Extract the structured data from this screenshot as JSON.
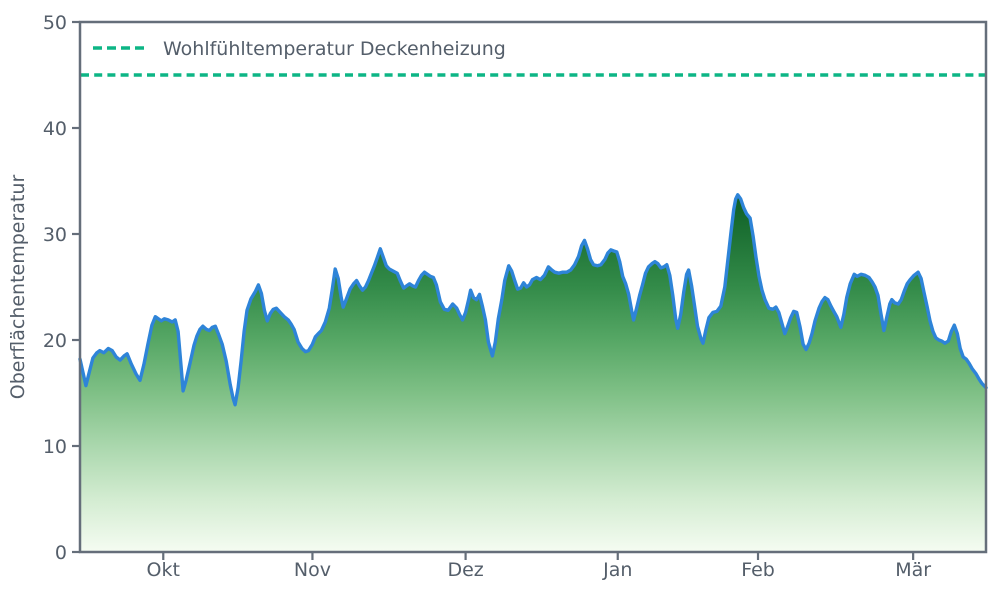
{
  "colors": {
    "background": "#ffffff",
    "frame": "#656e7a",
    "text": "#545e6a",
    "series_line": "#2e84d8",
    "reference_line": "#0db585"
  },
  "legend": {
    "label": "Wohlfühltemperatur Deckenheizung",
    "position": "upper left"
  },
  "chart_data": {
    "type": "area",
    "title": "",
    "xlabel": "",
    "ylabel": "Oberflächentemperatur",
    "ylim": [
      0,
      50
    ],
    "grid": false,
    "legend_position": "upper left",
    "y_ticks": [
      0,
      10,
      20,
      30,
      40,
      50
    ],
    "x_ticks": [
      {
        "label": "Okt",
        "day": 16.8
      },
      {
        "label": "Nov",
        "day": 46.9
      },
      {
        "label": "Dez",
        "day": 77.8
      },
      {
        "label": "Jan",
        "day": 108.5
      },
      {
        "label": "Feb",
        "day": 136.8
      },
      {
        "label": "Mär",
        "day": 168.1
      }
    ],
    "day_max": 182.8,
    "reference_line": {
      "label": "Wohlfühltemperatur Deckenheizung",
      "value": 45,
      "style": "dashed"
    },
    "fill_gradient": [
      [
        0.0,
        "#013f12"
      ],
      [
        0.3,
        "#085720"
      ],
      [
        0.4,
        "#1d7134"
      ],
      [
        0.5,
        "#338b49"
      ],
      [
        0.6,
        "#56a765"
      ],
      [
        0.7,
        "#7fc086"
      ],
      [
        0.8,
        "#aad7ad"
      ],
      [
        0.9,
        "#d3ecd1"
      ],
      [
        1.0,
        "#f5fcf2"
      ]
    ],
    "series": [
      {
        "name": "Oberflächentemperatur",
        "points_day_temperature": [
          [
            0,
            18.2
          ],
          [
            1.2,
            15.7
          ],
          [
            2,
            17.2
          ],
          [
            2.6,
            18.3
          ],
          [
            3.4,
            18.8
          ],
          [
            4,
            19
          ],
          [
            4.8,
            18.8
          ],
          [
            5.7,
            19.2
          ],
          [
            6.5,
            19
          ],
          [
            7.3,
            18.4
          ],
          [
            8.1,
            18.1
          ],
          [
            8.9,
            18.5
          ],
          [
            9.5,
            18.7
          ],
          [
            10.3,
            17.8
          ],
          [
            11.3,
            16.8
          ],
          [
            12.1,
            16.2
          ],
          [
            12.9,
            17.7
          ],
          [
            13.7,
            19.6
          ],
          [
            14.5,
            21.4
          ],
          [
            15.2,
            22.2
          ],
          [
            15.8,
            22
          ],
          [
            16.4,
            21.8
          ],
          [
            17,
            22
          ],
          [
            17.8,
            21.9
          ],
          [
            18.6,
            21.7
          ],
          [
            19.2,
            21.9
          ],
          [
            19.8,
            20.8
          ],
          [
            20.4,
            17.5
          ],
          [
            20.8,
            15.2
          ],
          [
            21.4,
            16.2
          ],
          [
            22.2,
            17.8
          ],
          [
            23,
            19.5
          ],
          [
            23.6,
            20.4
          ],
          [
            24.2,
            21
          ],
          [
            24.8,
            21.3
          ],
          [
            25.5,
            21
          ],
          [
            26.1,
            20.9
          ],
          [
            26.7,
            21.2
          ],
          [
            27.3,
            21.3
          ],
          [
            27.9,
            20.6
          ],
          [
            28.7,
            19.6
          ],
          [
            29.5,
            18
          ],
          [
            30.3,
            15.8
          ],
          [
            30.9,
            14.5
          ],
          [
            31.3,
            13.9
          ],
          [
            31.9,
            15.5
          ],
          [
            32.5,
            18
          ],
          [
            33.1,
            20.8
          ],
          [
            33.7,
            22.8
          ],
          [
            34.5,
            23.9
          ],
          [
            35.4,
            24.6
          ],
          [
            36,
            25.2
          ],
          [
            36.6,
            24.4
          ],
          [
            37.2,
            22.8
          ],
          [
            37.8,
            21.8
          ],
          [
            38.4,
            22.5
          ],
          [
            39,
            22.9
          ],
          [
            39.6,
            23
          ],
          [
            40.4,
            22.6
          ],
          [
            41.2,
            22.2
          ],
          [
            42,
            21.9
          ],
          [
            42.6,
            21.5
          ],
          [
            43.2,
            21
          ],
          [
            44,
            19.8
          ],
          [
            44.8,
            19.2
          ],
          [
            45.5,
            18.9
          ],
          [
            46.1,
            19
          ],
          [
            46.9,
            19.6
          ],
          [
            47.5,
            20.3
          ],
          [
            48.1,
            20.6
          ],
          [
            48.7,
            20.9
          ],
          [
            49.5,
            21.7
          ],
          [
            50.3,
            23
          ],
          [
            50.9,
            24.8
          ],
          [
            51.5,
            26.7
          ],
          [
            52.1,
            25.8
          ],
          [
            52.7,
            24
          ],
          [
            53.1,
            23.1
          ],
          [
            53.7,
            23.8
          ],
          [
            54.5,
            24.8
          ],
          [
            55.2,
            25.3
          ],
          [
            55.8,
            25.6
          ],
          [
            56.4,
            25.1
          ],
          [
            57,
            24.7
          ],
          [
            57.6,
            25
          ],
          [
            58.2,
            25.6
          ],
          [
            58.8,
            26.3
          ],
          [
            59.4,
            27
          ],
          [
            60,
            27.8
          ],
          [
            60.6,
            28.6
          ],
          [
            61.2,
            27.8
          ],
          [
            61.8,
            27
          ],
          [
            62.4,
            26.7
          ],
          [
            63.2,
            26.5
          ],
          [
            64,
            26.3
          ],
          [
            64.6,
            25.6
          ],
          [
            65.3,
            24.9
          ],
          [
            65.9,
            25.1
          ],
          [
            66.5,
            25.3
          ],
          [
            67.1,
            25.1
          ],
          [
            67.7,
            25
          ],
          [
            68.3,
            25.6
          ],
          [
            68.9,
            26.1
          ],
          [
            69.5,
            26.4
          ],
          [
            70.1,
            26.2
          ],
          [
            70.7,
            26
          ],
          [
            71.3,
            25.9
          ],
          [
            71.9,
            25.2
          ],
          [
            72.7,
            23.6
          ],
          [
            73.5,
            22.9
          ],
          [
            74.3,
            22.8
          ],
          [
            75.2,
            23.4
          ],
          [
            76,
            23
          ],
          [
            76.6,
            22.4
          ],
          [
            77.2,
            21.9
          ],
          [
            77.8,
            22.6
          ],
          [
            78.4,
            23.8
          ],
          [
            78.8,
            24.7
          ],
          [
            79.4,
            24
          ],
          [
            80,
            23.8
          ],
          [
            80.6,
            24.3
          ],
          [
            81.2,
            23.2
          ],
          [
            81.8,
            21.9
          ],
          [
            82.4,
            19.8
          ],
          [
            83.2,
            18.5
          ],
          [
            83.8,
            19.8
          ],
          [
            84.4,
            22
          ],
          [
            85.1,
            23.8
          ],
          [
            85.7,
            25.6
          ],
          [
            86.5,
            27
          ],
          [
            87.1,
            26.5
          ],
          [
            87.7,
            25.6
          ],
          [
            88.3,
            24.8
          ],
          [
            88.9,
            24.9
          ],
          [
            89.5,
            25.4
          ],
          [
            90.1,
            25
          ],
          [
            90.7,
            25.2
          ],
          [
            91.3,
            25.7
          ],
          [
            92.1,
            25.9
          ],
          [
            92.9,
            25.7
          ],
          [
            93.7,
            26.1
          ],
          [
            94.5,
            26.9
          ],
          [
            95.2,
            26.6
          ],
          [
            95.8,
            26.4
          ],
          [
            96.6,
            26.3
          ],
          [
            97.4,
            26.4
          ],
          [
            98.2,
            26.4
          ],
          [
            99,
            26.6
          ],
          [
            99.8,
            27.1
          ],
          [
            100.6,
            27.9
          ],
          [
            101.2,
            28.9
          ],
          [
            101.8,
            29.4
          ],
          [
            102.4,
            28.6
          ],
          [
            103,
            27.6
          ],
          [
            103.6,
            27.1
          ],
          [
            104.4,
            27
          ],
          [
            105.1,
            27.1
          ],
          [
            105.9,
            27.6
          ],
          [
            106.5,
            28.2
          ],
          [
            107.1,
            28.5
          ],
          [
            107.7,
            28.4
          ],
          [
            108.3,
            28.3
          ],
          [
            108.9,
            27.4
          ],
          [
            109.5,
            26
          ],
          [
            110.1,
            25.3
          ],
          [
            110.7,
            24.3
          ],
          [
            111.3,
            22.8
          ],
          [
            111.7,
            21.9
          ],
          [
            112.3,
            23
          ],
          [
            112.9,
            24.2
          ],
          [
            113.5,
            25.2
          ],
          [
            114.1,
            26.3
          ],
          [
            114.7,
            26.9
          ],
          [
            115.4,
            27.2
          ],
          [
            116,
            27.4
          ],
          [
            116.6,
            27.2
          ],
          [
            117.2,
            26.8
          ],
          [
            117.8,
            26.9
          ],
          [
            118.4,
            27.1
          ],
          [
            119,
            26.1
          ],
          [
            119.6,
            24.2
          ],
          [
            120.2,
            22
          ],
          [
            120.6,
            21.1
          ],
          [
            121.2,
            22.4
          ],
          [
            121.8,
            24.5
          ],
          [
            122.4,
            26.2
          ],
          [
            122.8,
            26.6
          ],
          [
            123.4,
            25.1
          ],
          [
            124,
            23.2
          ],
          [
            124.6,
            21.3
          ],
          [
            125.3,
            20.1
          ],
          [
            125.7,
            19.7
          ],
          [
            126.3,
            21
          ],
          [
            126.9,
            22.1
          ],
          [
            127.7,
            22.6
          ],
          [
            128.5,
            22.7
          ],
          [
            129.3,
            23.2
          ],
          [
            130.1,
            25
          ],
          [
            130.7,
            27.5
          ],
          [
            131.3,
            30
          ],
          [
            131.9,
            32.3
          ],
          [
            132.3,
            33.3
          ],
          [
            132.7,
            33.7
          ],
          [
            133.3,
            33.3
          ],
          [
            133.9,
            32.5
          ],
          [
            134.5,
            31.9
          ],
          [
            135.2,
            31.5
          ],
          [
            135.8,
            29.8
          ],
          [
            136.4,
            27.8
          ],
          [
            137,
            26
          ],
          [
            137.6,
            24.7
          ],
          [
            138.2,
            23.8
          ],
          [
            139,
            23
          ],
          [
            139.8,
            22.9
          ],
          [
            140.4,
            23.1
          ],
          [
            141,
            22.6
          ],
          [
            141.6,
            21.6
          ],
          [
            142.2,
            20.6
          ],
          [
            142.8,
            21.3
          ],
          [
            143.4,
            22.1
          ],
          [
            144,
            22.7
          ],
          [
            144.6,
            22.6
          ],
          [
            145.3,
            21.2
          ],
          [
            145.9,
            19.6
          ],
          [
            146.5,
            19.1
          ],
          [
            147.1,
            19.7
          ],
          [
            147.7,
            20.6
          ],
          [
            148.3,
            21.8
          ],
          [
            149.1,
            23
          ],
          [
            149.7,
            23.6
          ],
          [
            150.3,
            24
          ],
          [
            150.9,
            23.8
          ],
          [
            151.5,
            23.2
          ],
          [
            152.1,
            22.7
          ],
          [
            152.7,
            22.2
          ],
          [
            153.5,
            21.2
          ],
          [
            154.1,
            22.4
          ],
          [
            154.7,
            24
          ],
          [
            155.4,
            25.3
          ],
          [
            156.2,
            26.2
          ],
          [
            156.8,
            26
          ],
          [
            157.6,
            26.2
          ],
          [
            158.4,
            26.1
          ],
          [
            159.2,
            25.9
          ],
          [
            159.8,
            25.5
          ],
          [
            160.4,
            25
          ],
          [
            161,
            24.2
          ],
          [
            161.6,
            22.5
          ],
          [
            162.2,
            20.9
          ],
          [
            162.8,
            22.2
          ],
          [
            163.4,
            23.4
          ],
          [
            163.8,
            23.8
          ],
          [
            164.4,
            23.5
          ],
          [
            165.1,
            23.4
          ],
          [
            165.7,
            23.8
          ],
          [
            166.3,
            24.6
          ],
          [
            166.9,
            25.3
          ],
          [
            167.5,
            25.7
          ],
          [
            168.3,
            26.1
          ],
          [
            169.1,
            26.4
          ],
          [
            169.7,
            25.8
          ],
          [
            170.3,
            24.5
          ],
          [
            170.9,
            23.2
          ],
          [
            171.5,
            21.8
          ],
          [
            172.1,
            20.8
          ],
          [
            172.7,
            20.2
          ],
          [
            173.3,
            20
          ],
          [
            173.9,
            19.9
          ],
          [
            174.5,
            19.7
          ],
          [
            175.2,
            19.9
          ],
          [
            175.8,
            20.8
          ],
          [
            176.4,
            21.4
          ],
          [
            177,
            20.6
          ],
          [
            177.6,
            19.2
          ],
          [
            178.2,
            18.4
          ],
          [
            178.8,
            18.2
          ],
          [
            179.4,
            17.8
          ],
          [
            180,
            17.3
          ],
          [
            180.8,
            16.8
          ],
          [
            181.4,
            16.3
          ],
          [
            182,
            15.9
          ],
          [
            182.8,
            15.5
          ]
        ]
      }
    ]
  }
}
